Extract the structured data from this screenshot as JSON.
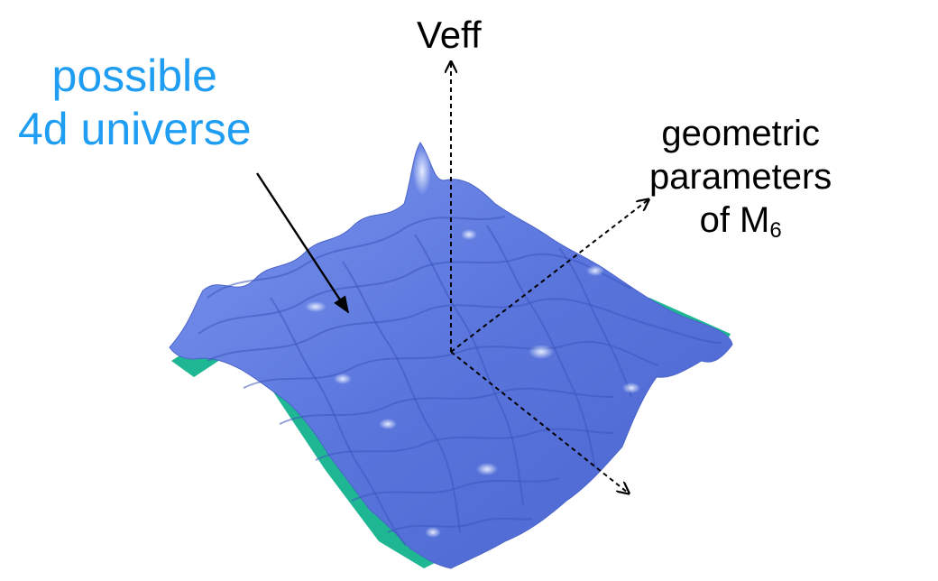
{
  "diagram": {
    "vertical_axis_label": "Veff",
    "annotation_universe": {
      "line1": "possible",
      "line2": "4d universe"
    },
    "annotation_parameters": {
      "line1": "geometric",
      "line2": "parameters",
      "line3_prefix": "of M",
      "line3_subscript": "6"
    }
  },
  "colors": {
    "annotation_blue": "#1e9df2",
    "surface_blue": "#5b79e0",
    "surface_light": "#c6d4ff",
    "underside_teal": "#1fb694"
  },
  "surface": {
    "kind": "wavy potential landscape (3D surface)",
    "grid_peaks": 7
  }
}
